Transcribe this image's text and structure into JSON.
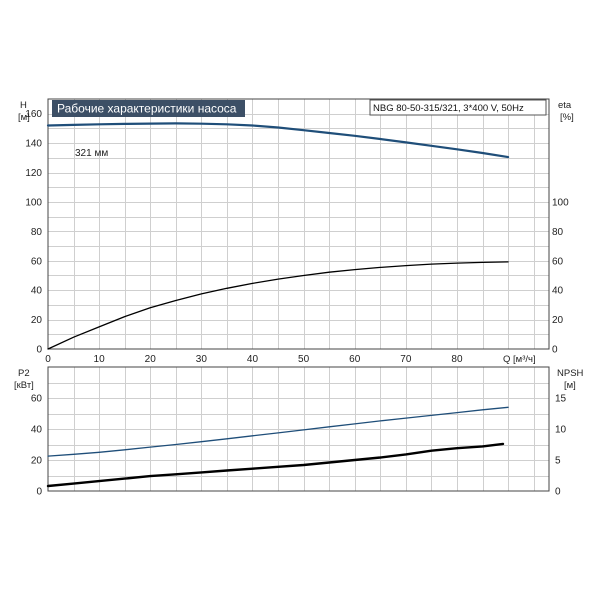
{
  "chart_data": [
    {
      "type": "line",
      "title": "Рабочие характеристики насоса",
      "subtitle": "NBG 80-50-315/321, 3*400 V, 50Hz",
      "xlabel": "Q [м³/ч]",
      "xlim": [
        0,
        98
      ],
      "x_ticks": [
        0,
        10,
        20,
        30,
        40,
        50,
        60,
        70,
        80
      ],
      "left_axis": {
        "label": [
          "H",
          "[м]"
        ],
        "ylim": [
          0,
          170
        ],
        "ticks": [
          0,
          20,
          40,
          60,
          80,
          100,
          120,
          140,
          160
        ]
      },
      "right_axis": {
        "label": [
          "eta",
          "[%]"
        ],
        "ylim": [
          0,
          170
        ],
        "ticks": [
          0,
          20,
          40,
          60,
          80,
          100
        ]
      },
      "grid": true,
      "annotations": [
        {
          "text": "321 мм",
          "x": 9,
          "y": 153
        }
      ],
      "series": [
        {
          "axis": "left",
          "color": "#1f4e79",
          "x": [
            0,
            5,
            10,
            15,
            20,
            25,
            30,
            35,
            40,
            45,
            50,
            55,
            60,
            65,
            70,
            75,
            80,
            85,
            90
          ],
          "values": [
            152.0,
            152.4,
            152.8,
            153.1,
            153.3,
            153.4,
            153.2,
            152.8,
            152.0,
            150.6,
            148.8,
            146.9,
            145.0,
            142.8,
            140.5,
            138.2,
            135.8,
            133.3,
            130.5
          ]
        },
        {
          "axis": "right",
          "color": "#000000",
          "x": [
            0,
            5,
            10,
            15,
            20,
            25,
            30,
            35,
            40,
            45,
            50,
            55,
            60,
            65,
            70,
            75,
            80,
            85,
            90
          ],
          "values": [
            0,
            8,
            15,
            22,
            28,
            33,
            37.5,
            41.3,
            44.6,
            47.5,
            50.0,
            52.2,
            54.0,
            55.5,
            56.7,
            57.7,
            58.4,
            58.9,
            59.2
          ]
        }
      ]
    },
    {
      "type": "line",
      "xlim": [
        0,
        98
      ],
      "left_axis": {
        "label": [
          "P2",
          "[кВт]"
        ],
        "ylim": [
          0,
          80
        ],
        "ticks": [
          0,
          20,
          40,
          60
        ]
      },
      "right_axis": {
        "label": [
          "NPSH",
          "[м]"
        ],
        "ylim": [
          0,
          20
        ],
        "ticks": [
          0,
          5,
          10,
          15
        ]
      },
      "grid": true,
      "series": [
        {
          "axis": "left",
          "color": "#1f4e79",
          "x": [
            0,
            5,
            10,
            15,
            20,
            25,
            30,
            35,
            40,
            45,
            50,
            55,
            60,
            65,
            70,
            75,
            80,
            85,
            90
          ],
          "values": [
            22.5,
            23.7,
            25.0,
            26.6,
            28.3,
            30.0,
            31.8,
            33.7,
            35.6,
            37.5,
            39.4,
            41.4,
            43.3,
            45.2,
            47.0,
            48.8,
            50.6,
            52.4,
            54.0
          ]
        },
        {
          "axis": "right",
          "color": "#000000",
          "x": [
            0,
            5,
            10,
            15,
            20,
            25,
            30,
            35,
            40,
            45,
            50,
            55,
            60,
            65,
            70,
            75,
            80,
            85,
            89
          ],
          "values": [
            0.8,
            1.2,
            1.6,
            2.0,
            2.4,
            2.7,
            3.0,
            3.3,
            3.6,
            3.9,
            4.2,
            4.6,
            5.0,
            5.4,
            5.9,
            6.5,
            6.9,
            7.2,
            7.6
          ]
        }
      ]
    }
  ]
}
